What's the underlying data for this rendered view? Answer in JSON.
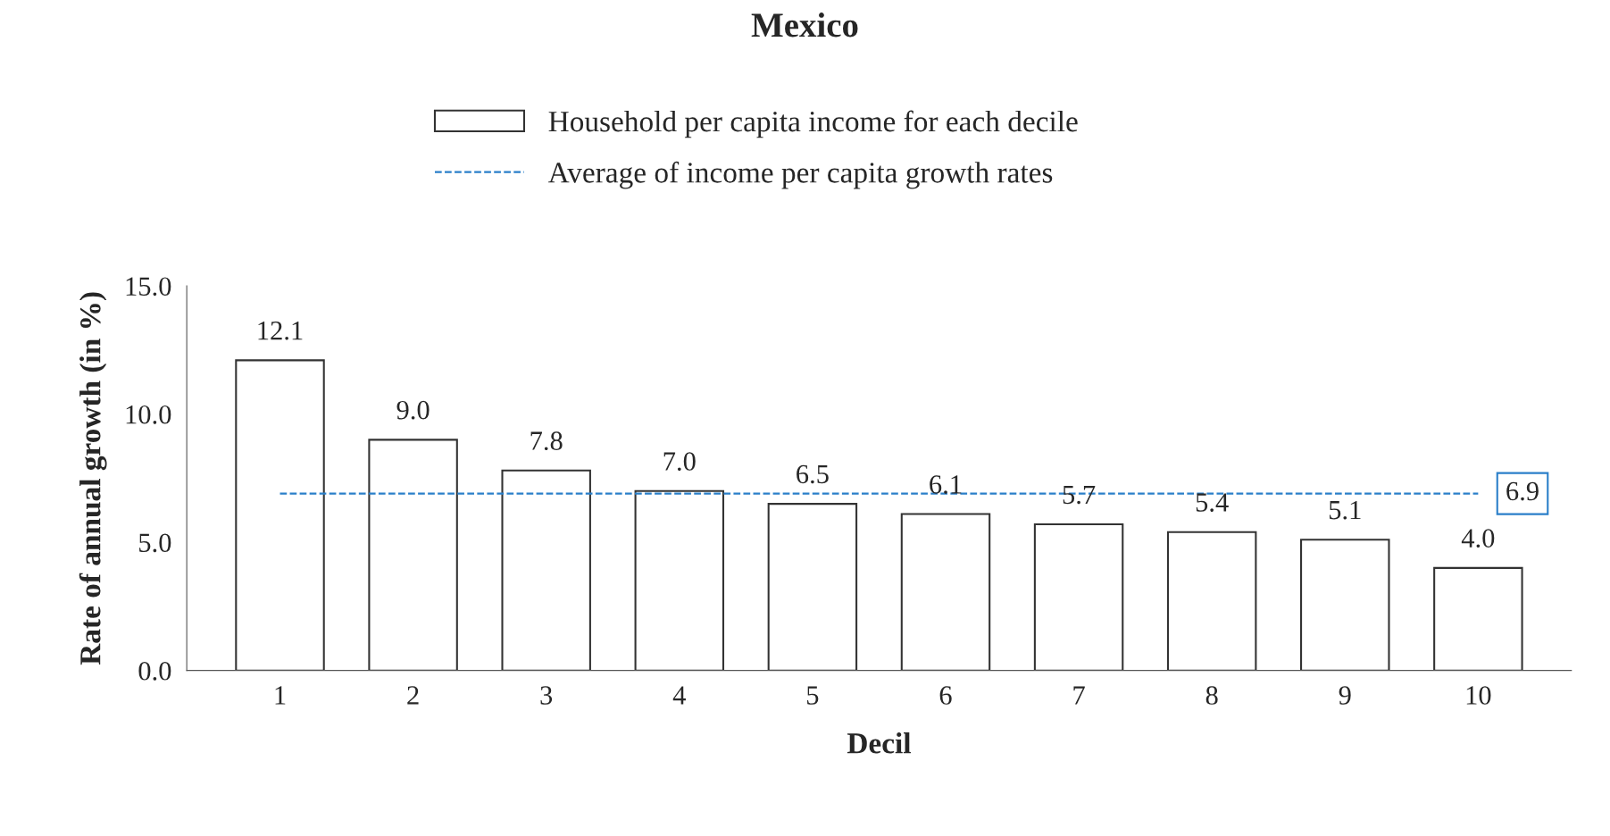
{
  "chart_data": {
    "type": "bar",
    "title": "Mexico",
    "xlabel": "Decil",
    "ylabel": "Rate of annual growth (in %)",
    "categories": [
      "1",
      "2",
      "3",
      "4",
      "5",
      "6",
      "7",
      "8",
      "9",
      "10"
    ],
    "series": [
      {
        "name": "Household per capita income for each decile",
        "color": "#ffffff",
        "values": [
          12.1,
          9.0,
          7.8,
          7.0,
          6.5,
          6.1,
          5.7,
          5.4,
          5.1,
          4.0
        ],
        "value_labels": [
          "12.1",
          "9.0",
          "7.8",
          "7.0",
          "6.5",
          "6.1",
          "5.7",
          "5.4",
          "5.1",
          "4.0"
        ]
      },
      {
        "name": "Average of income per capita growth rates",
        "type": "line",
        "color": "#2a7fc9",
        "line_style": "dashed",
        "values": [
          6.9,
          6.9,
          6.9,
          6.9,
          6.9,
          6.9,
          6.9,
          6.9,
          6.9,
          6.9
        ],
        "value_labels": [
          null,
          null,
          null,
          null,
          null,
          null,
          null,
          null,
          null,
          "6.9"
        ]
      }
    ],
    "ylim": [
      0,
      15
    ],
    "yticks": [
      {
        "value": 0,
        "label": "0.0"
      },
      {
        "value": 5,
        "label": "5.0"
      },
      {
        "value": 10,
        "label": "10.0"
      },
      {
        "value": 15,
        "label": "15.0"
      }
    ],
    "grid": false,
    "legend": "top"
  }
}
